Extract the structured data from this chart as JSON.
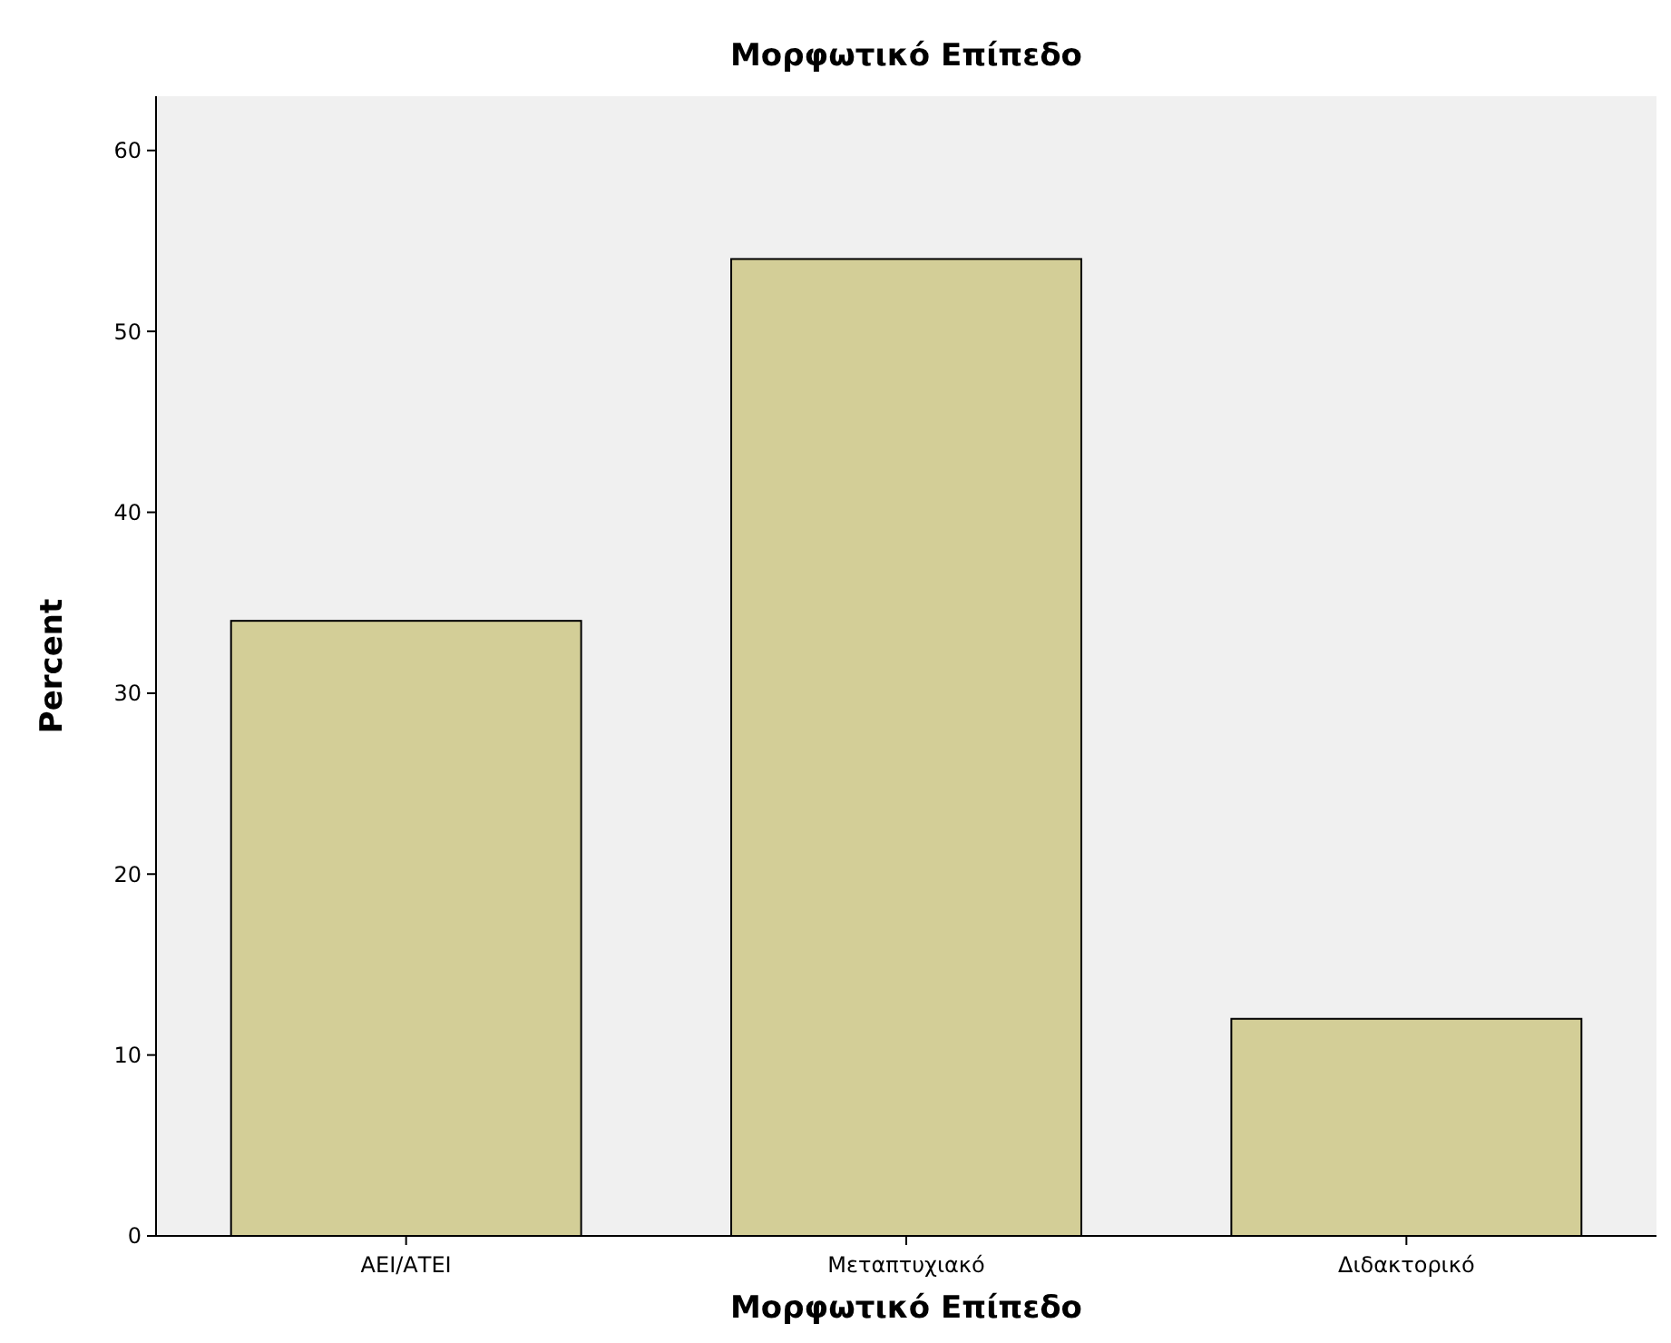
{
  "chart_data": {
    "type": "bar",
    "title": "Μορφωτικό Επίπεδο",
    "xlabel": "Μορφωτικό Επίπεδο",
    "ylabel": "Percent",
    "categories": [
      "ΑΕΙ/ΑΤΕΙ",
      "Μεταπτυχιακό",
      "Διδακτορικό"
    ],
    "values": [
      34,
      54,
      12
    ],
    "color": "#d3ce97",
    "ylim": [
      0,
      63
    ],
    "yticks": [
      0,
      10,
      20,
      30,
      40,
      50,
      60
    ],
    "grid": false
  }
}
